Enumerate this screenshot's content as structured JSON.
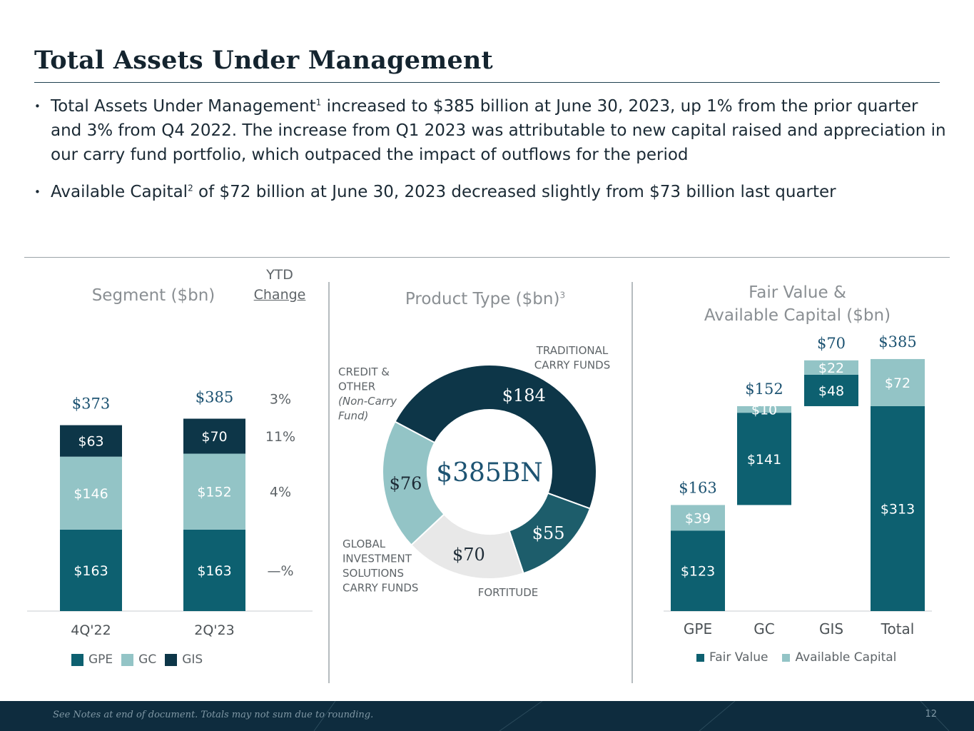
{
  "title": "Total Assets Under Management",
  "bullets": [
    {
      "pre": "Total Assets Under Management",
      "sup": "1",
      "post": " increased to $385 billion at June 30, 2023, up 1% from the prior quarter and 3% from Q4 2022. The increase from Q1 2023 was attributable to new capital raised and appreciation in our carry fund portfolio, which outpaced the impact of outflows for the period"
    },
    {
      "pre": "Available Capital",
      "sup": "2",
      "post": " of $72 billion at June 30, 2023 decreased slightly from $73 billion last quarter"
    }
  ],
  "headers": {
    "segment": "Segment ($bn)",
    "product": "Product Type ($bn)",
    "product_sup": "3",
    "fair_line1": "Fair Value &",
    "fair_line2": "Available Capital ($bn)",
    "ytd_line1": "YTD",
    "ytd_line2": "Change"
  },
  "colors": {
    "gpe": "#0d6070",
    "gc": "#93c4c6",
    "gis": "#0d3648",
    "gis_product": "#e8e8e8",
    "fortitude": "#1d5d6b"
  },
  "footer": {
    "note": "See Notes at end of document. Totals may not sum due to rounding.",
    "page": "12"
  },
  "chart_data": [
    {
      "type": "bar",
      "stacked": true,
      "title": "Segment ($bn)",
      "categories": [
        "4Q'22",
        "2Q'23"
      ],
      "series": [
        {
          "name": "GPE",
          "values": [
            163,
            163
          ],
          "labels": [
            "$163",
            "$163"
          ]
        },
        {
          "name": "GC",
          "values": [
            146,
            152
          ],
          "labels": [
            "$146",
            "$152"
          ]
        },
        {
          "name": "GIS",
          "values": [
            63,
            70
          ],
          "labels": [
            "$63",
            "$70"
          ]
        }
      ],
      "totals": [
        "$373",
        "$385"
      ],
      "ytd_change": {
        "total": "3%",
        "GIS": "11%",
        "GC": "4%",
        "GPE": "—%"
      },
      "legend": [
        "GPE",
        "GC",
        "GIS"
      ]
    },
    {
      "type": "pie",
      "donut": true,
      "title": "Product Type ($bn)",
      "center_label": "$385BN",
      "slices": [
        {
          "name": "TRADITIONAL CARRY FUNDS",
          "value": 184,
          "label": "$184"
        },
        {
          "name": "FORTITUDE",
          "value": 55,
          "label": "$55"
        },
        {
          "name": "GLOBAL INVESTMENT SOLUTIONS CARRY FUNDS",
          "value": 70,
          "label": "$70"
        },
        {
          "name": "CREDIT & OTHER (Non-Carry Fund)",
          "value": 76,
          "label": "$76"
        }
      ],
      "callouts": {
        "traditional": [
          "TRADITIONAL",
          "CARRY FUNDS"
        ],
        "credit": [
          "CREDIT &",
          "OTHER"
        ],
        "credit_sub": [
          "(Non-Carry",
          "Fund)"
        ],
        "gis": [
          "GLOBAL",
          "INVESTMENT",
          "SOLUTIONS",
          "CARRY FUNDS"
        ],
        "fortitude": [
          "FORTITUDE"
        ]
      }
    },
    {
      "type": "bar",
      "waterfall": true,
      "title": "Fair Value & Available Capital ($bn)",
      "categories": [
        "GPE",
        "GC",
        "GIS",
        "Total"
      ],
      "series": [
        {
          "name": "Fair Value",
          "values": [
            123,
            141,
            48,
            313
          ],
          "labels": [
            "$123",
            "$141",
            "$48",
            "$313"
          ]
        },
        {
          "name": "Available Capital",
          "values": [
            39,
            10,
            22,
            72
          ],
          "labels": [
            "$39",
            "$10",
            "$22",
            "$72"
          ]
        }
      ],
      "totals": [
        "$163",
        "$152",
        "$70",
        "$385"
      ],
      "ylim": [
        0,
        385
      ],
      "legend": [
        "Fair Value",
        "Available Capital"
      ]
    }
  ]
}
